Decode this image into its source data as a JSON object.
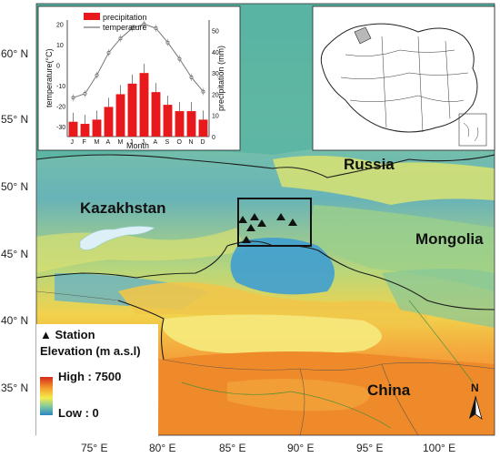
{
  "map": {
    "lat_labels": [
      "60° N",
      "55° N",
      "50° N",
      "45° N",
      "40° N",
      "35° N"
    ],
    "lon_labels": [
      "75° E",
      "80° E",
      "85° E",
      "90° E",
      "95° E",
      "100° E"
    ],
    "countries": {
      "kazakhstan": "Kazakhstan",
      "russia": "Russia",
      "mongolia": "Mongolia",
      "china": "China"
    },
    "north_arrow": "N",
    "colors": {
      "high": "#d62a1c",
      "mid": "#f3ec4e",
      "low": "#2b86c4"
    }
  },
  "legend": {
    "station_label": "Station",
    "elevation_label": "Elevation (m a.s.l)",
    "high_label": "High : 7500",
    "low_label": "Low : 0"
  },
  "inset_chart": {
    "legend_precip": "precipitation",
    "legend_temp": "temperature",
    "ylabel_left": "temperature(°C)",
    "ylabel_right": "precipitation (mm)",
    "xlabel": "Month",
    "left_ticks": [
      "20",
      "10",
      "0",
      "-10",
      "-20",
      "-30"
    ],
    "right_ticks": [
      "50",
      "40",
      "30",
      "20",
      "10",
      "0"
    ]
  },
  "chart_data": {
    "type": "bar",
    "categories": [
      "J",
      "F",
      "M",
      "A",
      "M",
      "J",
      "J",
      "A",
      "S",
      "O",
      "N",
      "D"
    ],
    "series": [
      {
        "name": "precipitation",
        "values": [
          7,
          6,
          8,
          14,
          20,
          25,
          30,
          21,
          15,
          12,
          12,
          8
        ]
      },
      {
        "name": "temperature",
        "values": [
          -16,
          -14,
          -5,
          6,
          13,
          18,
          20,
          18,
          11,
          3,
          -6,
          -13
        ]
      }
    ],
    "ylim_left": [
      -35,
      22
    ],
    "ylim_right": [
      0,
      55
    ],
    "colors": {
      "precipitation": "#e8191d",
      "temperature": "#777777"
    }
  }
}
